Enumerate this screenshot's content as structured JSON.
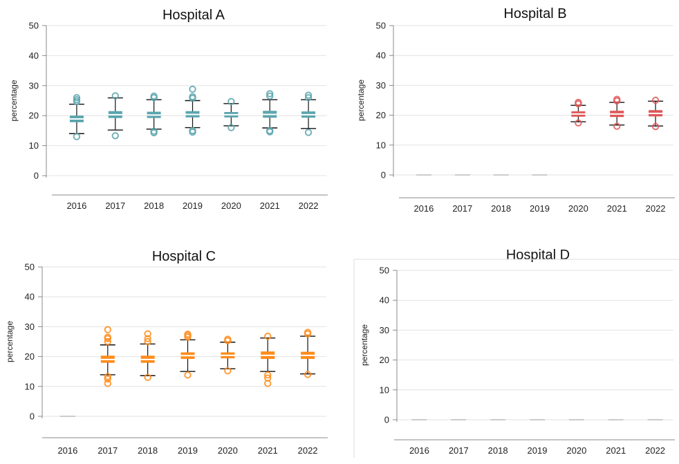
{
  "chart_data": [
    {
      "type": "box",
      "title": "Hospital A",
      "ylabel": "percentage",
      "xlabel": "",
      "ylim": [
        0,
        50
      ],
      "yticks": [
        0,
        10,
        20,
        30,
        40,
        50
      ],
      "categories": [
        "2016",
        "2017",
        "2018",
        "2019",
        "2020",
        "2021",
        "2022"
      ],
      "color": "#5aa5ad",
      "boxes": [
        {
          "x": "2016",
          "whisker_low": 14.0,
          "q1": 17.8,
          "median": 18.9,
          "q3": 20.0,
          "whisker_high": 23.8,
          "outliers": [
            13.0,
            24.7,
            25.3,
            26.0
          ]
        },
        {
          "x": "2017",
          "whisker_low": 15.2,
          "q1": 19.2,
          "median": 20.3,
          "q3": 21.5,
          "whisker_high": 25.9,
          "outliers": [
            13.3,
            26.6
          ]
        },
        {
          "x": "2018",
          "whisker_low": 15.5,
          "q1": 19.2,
          "median": 20.2,
          "q3": 21.3,
          "whisker_high": 25.3,
          "outliers": [
            14.3,
            14.8,
            26.0,
            26.5
          ]
        },
        {
          "x": "2019",
          "whisker_low": 16.0,
          "q1": 19.4,
          "median": 20.4,
          "q3": 21.5,
          "whisker_high": 25.0,
          "outliers": [
            14.5,
            15.0,
            25.8,
            26.3,
            28.8
          ]
        },
        {
          "x": "2020",
          "whisker_low": 16.6,
          "q1": 19.4,
          "median": 20.3,
          "q3": 21.2,
          "whisker_high": 24.0,
          "outliers": [
            16.0,
            24.7
          ]
        },
        {
          "x": "2021",
          "whisker_low": 15.9,
          "q1": 19.3,
          "median": 20.4,
          "q3": 21.6,
          "whisker_high": 25.3,
          "outliers": [
            14.6,
            15.0,
            26.5,
            27.3
          ]
        },
        {
          "x": "2022",
          "whisker_low": 15.7,
          "q1": 19.3,
          "median": 20.3,
          "q3": 21.4,
          "whisker_high": 25.3,
          "outliers": [
            14.4,
            26.0,
            26.8
          ]
        }
      ]
    },
    {
      "type": "box",
      "title": "Hospital B",
      "ylabel": "percentage",
      "xlabel": "",
      "ylim": [
        0,
        50
      ],
      "yticks": [
        0,
        10,
        20,
        30,
        40,
        50
      ],
      "categories": [
        "2016",
        "2017",
        "2018",
        "2019",
        "2020",
        "2021",
        "2022"
      ],
      "color": "#e05757",
      "boxes": [
        {
          "x": "2016",
          "empty": true
        },
        {
          "x": "2017",
          "empty": true
        },
        {
          "x": "2018",
          "empty": true
        },
        {
          "x": "2019",
          "empty": true
        },
        {
          "x": "2020",
          "whisker_low": 17.8,
          "q1": 19.5,
          "median": 20.4,
          "q3": 21.3,
          "whisker_high": 23.3,
          "outliers": [
            17.4,
            23.8,
            24.3
          ]
        },
        {
          "x": "2021",
          "whisker_low": 16.7,
          "q1": 19.4,
          "median": 20.4,
          "q3": 21.5,
          "whisker_high": 24.3,
          "outliers": [
            16.3,
            24.8,
            25.3
          ]
        },
        {
          "x": "2022",
          "whisker_low": 16.4,
          "q1": 19.6,
          "median": 20.6,
          "q3": 21.7,
          "whisker_high": 24.7,
          "outliers": [
            16.2,
            25.0
          ]
        }
      ]
    },
    {
      "type": "box",
      "title": "Hospital C",
      "ylabel": "percentage",
      "xlabel": "",
      "ylim": [
        0,
        50
      ],
      "yticks": [
        0,
        10,
        20,
        30,
        40,
        50
      ],
      "categories": [
        "2016",
        "2017",
        "2018",
        "2019",
        "2020",
        "2021",
        "2022"
      ],
      "color": "#ff8c1a",
      "boxes": [
        {
          "x": "2016",
          "empty": true
        },
        {
          "x": "2017",
          "whisker_low": 13.9,
          "q1": 17.9,
          "median": 19.0,
          "q3": 20.3,
          "whisker_high": 23.9,
          "outliers": [
            11.0,
            12.5,
            13.3,
            25.0,
            26.0,
            26.5,
            29.0
          ]
        },
        {
          "x": "2018",
          "whisker_low": 13.6,
          "q1": 17.9,
          "median": 19.0,
          "q3": 20.3,
          "whisker_high": 24.2,
          "outliers": [
            13.0,
            25.0,
            26.0,
            27.6
          ]
        },
        {
          "x": "2019",
          "whisker_low": 15.0,
          "q1": 19.2,
          "median": 20.3,
          "q3": 21.4,
          "whisker_high": 25.6,
          "outliers": [
            13.8,
            26.5,
            27.0,
            27.5
          ]
        },
        {
          "x": "2020",
          "whisker_low": 15.9,
          "q1": 19.4,
          "median": 20.4,
          "q3": 21.4,
          "whisker_high": 24.8,
          "outliers": [
            15.2,
            25.3,
            25.8
          ]
        },
        {
          "x": "2021",
          "whisker_low": 15.0,
          "q1": 19.2,
          "median": 20.4,
          "q3": 21.7,
          "whisker_high": 26.2,
          "outliers": [
            11.0,
            12.8,
            13.8,
            26.8
          ]
        },
        {
          "x": "2022",
          "whisker_low": 14.2,
          "q1": 19.2,
          "median": 20.4,
          "q3": 21.6,
          "whisker_high": 26.8,
          "outliers": [
            14.0,
            27.6,
            28.1
          ]
        }
      ]
    },
    {
      "type": "box",
      "title": "Hospital D",
      "ylabel": "percentage",
      "xlabel": "",
      "ylim": [
        0,
        50
      ],
      "yticks": [
        0,
        10,
        20,
        30,
        40,
        50
      ],
      "categories": [
        "2016",
        "2017",
        "2018",
        "2019",
        "2020",
        "2021",
        "2022"
      ],
      "color": "#888888",
      "boxes": [
        {
          "x": "2016",
          "empty": true
        },
        {
          "x": "2017",
          "empty": true
        },
        {
          "x": "2018",
          "empty": true
        },
        {
          "x": "2019",
          "empty": true
        },
        {
          "x": "2020",
          "empty": true
        },
        {
          "x": "2021",
          "empty": true
        },
        {
          "x": "2022",
          "empty": true
        }
      ]
    }
  ]
}
